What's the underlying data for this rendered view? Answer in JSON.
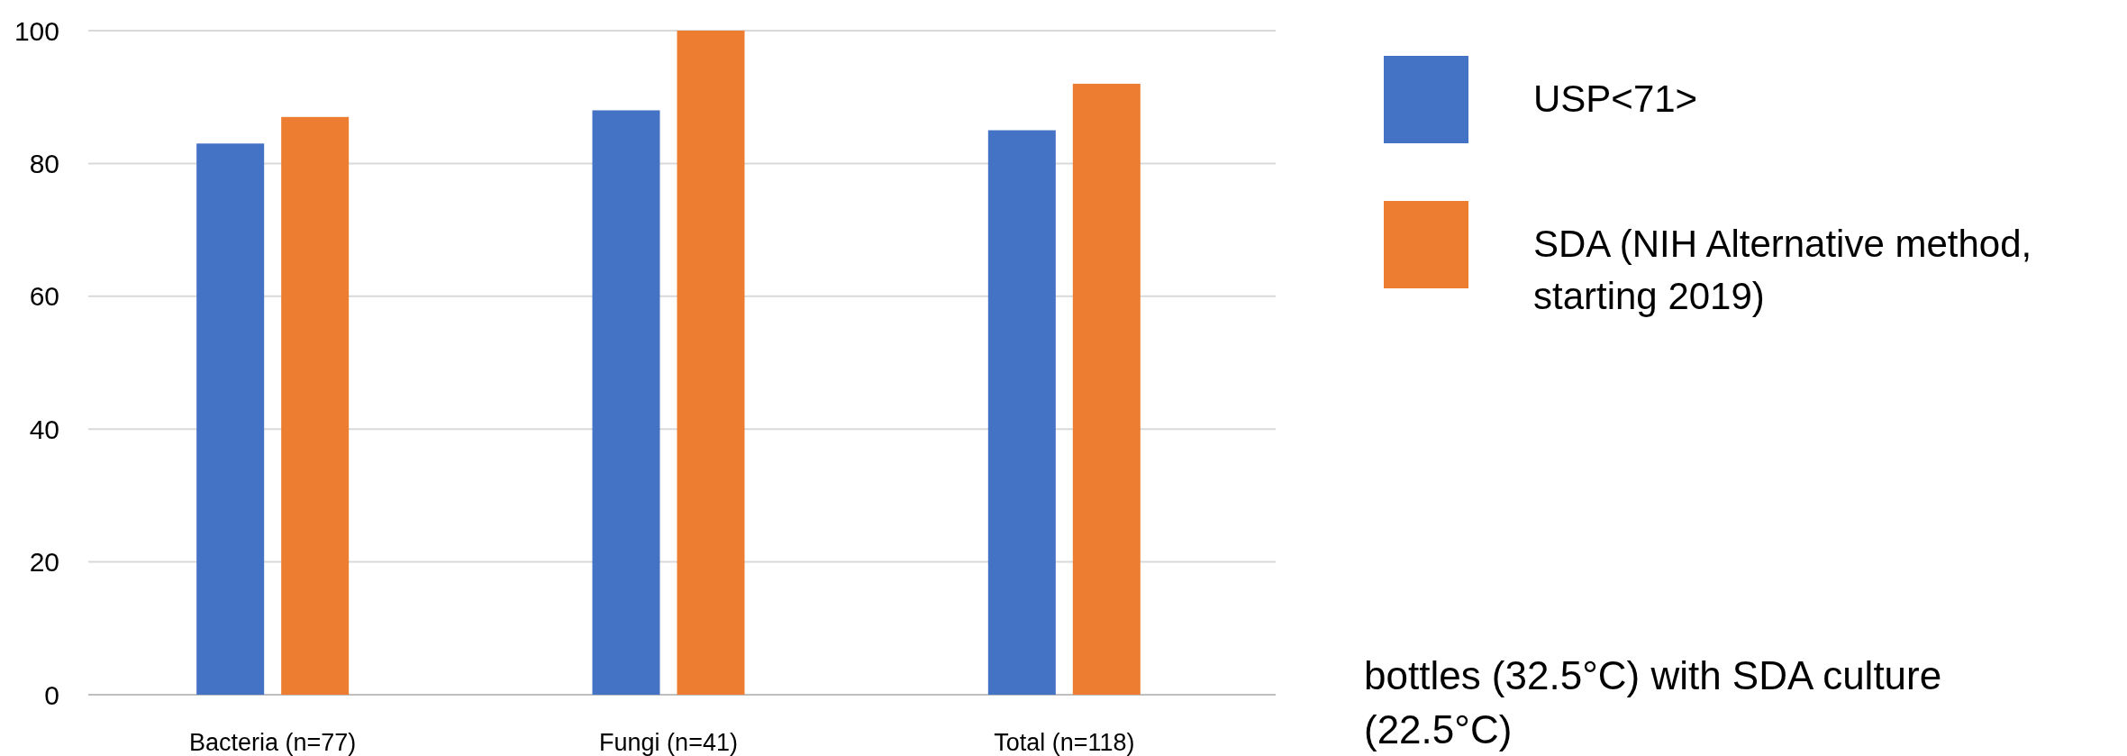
{
  "chart_data": {
    "type": "bar",
    "categories": [
      "Bacteria (n=77)",
      "Fungi (n=41)",
      "Total (n=118)"
    ],
    "series": [
      {
        "name": "USP<71>",
        "color": "#4472c4",
        "values": [
          83,
          88,
          85
        ]
      },
      {
        "name": "SDA (NIH Alternative method, starting 2019)",
        "color": "#ed7d31",
        "values": [
          87,
          100,
          92
        ]
      }
    ],
    "ylim": [
      0,
      100
    ],
    "yticks": [
      0,
      20,
      40,
      60,
      80,
      100
    ],
    "grid": "y",
    "legend": "right",
    "annotations": [
      "bottles (32.5°C) with SDA culture (22.5°C)"
    ]
  }
}
